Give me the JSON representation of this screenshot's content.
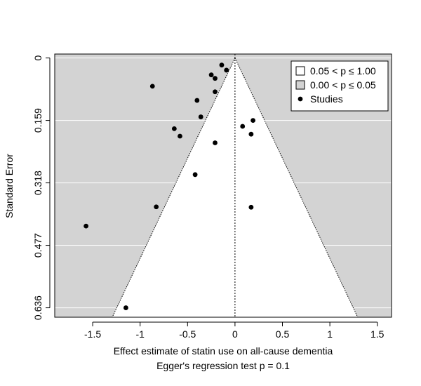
{
  "chart_data": {
    "type": "scatter",
    "subtype": "contour-enhanced funnel plot",
    "xlabel": "Effect estimate of statin use on all-cause dementia",
    "ylabel": "Standard Error",
    "footnote": "Egger's regression test p = 0.1",
    "xlim": [
      -1.9,
      1.65
    ],
    "ylim": [
      0.66,
      -0.01
    ],
    "y_reversed": true,
    "x_ticks": [
      -1.5,
      -1,
      -0.5,
      0,
      0.5,
      1,
      1.5
    ],
    "x_tick_labels": [
      "-1.5",
      "-1",
      "-0.5",
      "0",
      "0.5",
      "1",
      "1.5"
    ],
    "y_ticks": [
      0,
      0.159,
      0.318,
      0.477,
      0.636
    ],
    "y_tick_labels": [
      "0",
      "0.159",
      "0.318",
      "0.477",
      "0.636"
    ],
    "grid": "horizontal",
    "reference_line_x": 0,
    "funnel_z": 1.96,
    "colors": {
      "significant_region": "#d3d3d3",
      "nonsignificant_region": "#ffffff",
      "points": "#000000",
      "grid": "#ffffff"
    },
    "legend": {
      "placement": "top-right",
      "items": [
        {
          "label": "0.05 < p ≤ 1.00",
          "symbol": "square",
          "fill": "#ffffff"
        },
        {
          "label": "0.00 < p ≤ 0.05",
          "symbol": "square",
          "fill": "#d3d3d3"
        },
        {
          "label": "Studies",
          "symbol": "point",
          "fill": "#000000"
        }
      ]
    },
    "series": [
      {
        "name": "Studies",
        "points": [
          {
            "x": -0.14,
            "y": 0.018
          },
          {
            "x": -0.09,
            "y": 0.031
          },
          {
            "x": -0.25,
            "y": 0.043
          },
          {
            "x": -0.21,
            "y": 0.052
          },
          {
            "x": -0.87,
            "y": 0.072
          },
          {
            "x": -0.21,
            "y": 0.086
          },
          {
            "x": -0.4,
            "y": 0.108
          },
          {
            "x": 0.19,
            "y": 0.159
          },
          {
            "x": -0.36,
            "y": 0.15
          },
          {
            "x": 0.08,
            "y": 0.174
          },
          {
            "x": -0.64,
            "y": 0.18
          },
          {
            "x": 0.17,
            "y": 0.194
          },
          {
            "x": -0.58,
            "y": 0.199
          },
          {
            "x": -0.21,
            "y": 0.216
          },
          {
            "x": -0.42,
            "y": 0.297
          },
          {
            "x": -0.83,
            "y": 0.379
          },
          {
            "x": 0.17,
            "y": 0.38
          },
          {
            "x": -1.57,
            "y": 0.428
          },
          {
            "x": -1.15,
            "y": 0.636
          }
        ]
      }
    ]
  }
}
